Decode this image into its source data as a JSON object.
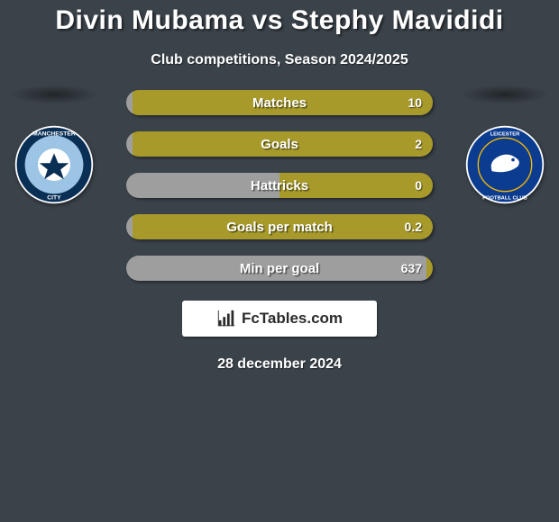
{
  "header": {
    "title": "Divin Mubama vs Stephy Mavididi",
    "subtitle": "Club competitions, Season 2024/2025"
  },
  "colors": {
    "player1": "#9e9e9e",
    "player2": "#a79a2a",
    "bg": "#3b434a"
  },
  "stats": [
    {
      "label": "Matches",
      "v1": "",
      "v2": "10",
      "p1": 2,
      "p2": 98
    },
    {
      "label": "Goals",
      "v1": "",
      "v2": "2",
      "p1": 2,
      "p2": 98
    },
    {
      "label": "Hattricks",
      "v1": "",
      "v2": "0",
      "p1": 50,
      "p2": 50
    },
    {
      "label": "Goals per match",
      "v1": "",
      "v2": "0.2",
      "p1": 2,
      "p2": 98
    },
    {
      "label": "Min per goal",
      "v1": "",
      "v2": "637",
      "p1": 98,
      "p2": 2
    }
  ],
  "watermark": {
    "text": "FcTables.com"
  },
  "date": "28 december 2024",
  "clubs": {
    "left": {
      "name": "Manchester City",
      "primary": "#9cc4e4",
      "ring": "#0a2f55",
      "accent": "#ffffff"
    },
    "right": {
      "name": "Leicester City",
      "primary": "#0c3c90",
      "ring": "#ffffff",
      "accent": "#f5b800"
    }
  }
}
